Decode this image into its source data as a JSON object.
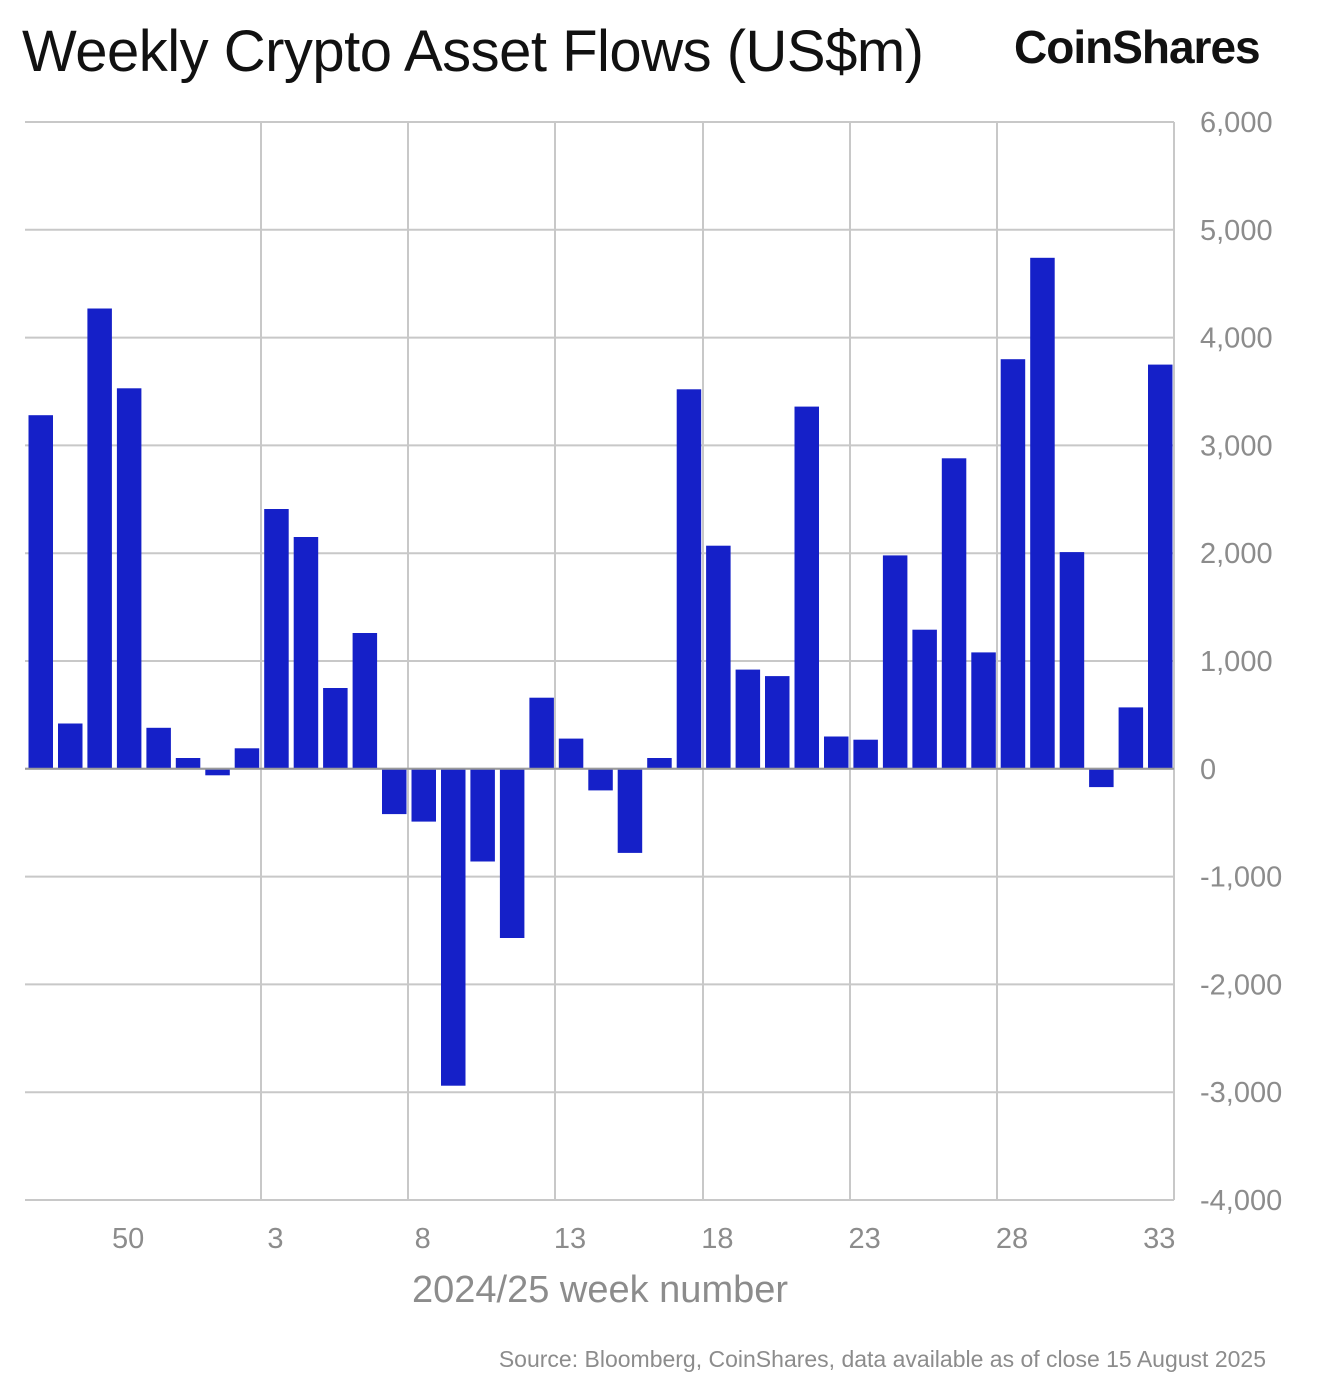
{
  "header": {
    "title": "Weekly Crypto Asset Flows (US$m)",
    "brand": "CoinShares"
  },
  "footer": {
    "source": "Source: Bloomberg, CoinShares, data available as of close 15 August 2025"
  },
  "colors": {
    "bar": "#1520c8",
    "grid": "#c8c8c8",
    "axis_text": "#8c8c8c"
  },
  "chart_data": {
    "type": "bar",
    "title": "Weekly Crypto Asset Flows (US$m)",
    "xlabel": "2024/25 week number",
    "ylabel": "",
    "ylim": [
      -4000,
      6000
    ],
    "y_ticks": [
      -4000,
      -3000,
      -2000,
      -1000,
      0,
      1000,
      2000,
      3000,
      4000,
      5000,
      6000
    ],
    "y_tick_labels": [
      "-4,000",
      "-3,000",
      "-2,000",
      "-1,000",
      "0",
      "1,000",
      "2,000",
      "3,000",
      "4,000",
      "5,000",
      "6,000"
    ],
    "x_tick_labels": [
      "50",
      "3",
      "8",
      "13",
      "18",
      "23",
      "28",
      "33"
    ],
    "y_axis_position": "right",
    "grid": true,
    "categories": [
      "47",
      "48",
      "49",
      "50",
      "51",
      "52",
      "1",
      "2",
      "3",
      "4",
      "5",
      "6",
      "7",
      "8",
      "9",
      "10",
      "11",
      "12",
      "13",
      "14",
      "15",
      "16",
      "17",
      "18",
      "19",
      "20",
      "21",
      "22",
      "23",
      "24",
      "25",
      "26",
      "27",
      "28",
      "29",
      "30",
      "31",
      "32",
      "33"
    ],
    "values": [
      3280,
      420,
      4270,
      3530,
      380,
      100,
      -60,
      190,
      2410,
      2150,
      750,
      1260,
      -420,
      -490,
      -2940,
      -860,
      -1570,
      660,
      280,
      -200,
      -780,
      100,
      3520,
      2070,
      920,
      860,
      3360,
      300,
      270,
      1980,
      1290,
      2880,
      1080,
      3800,
      4740,
      2010,
      -170,
      570,
      3750
    ]
  }
}
